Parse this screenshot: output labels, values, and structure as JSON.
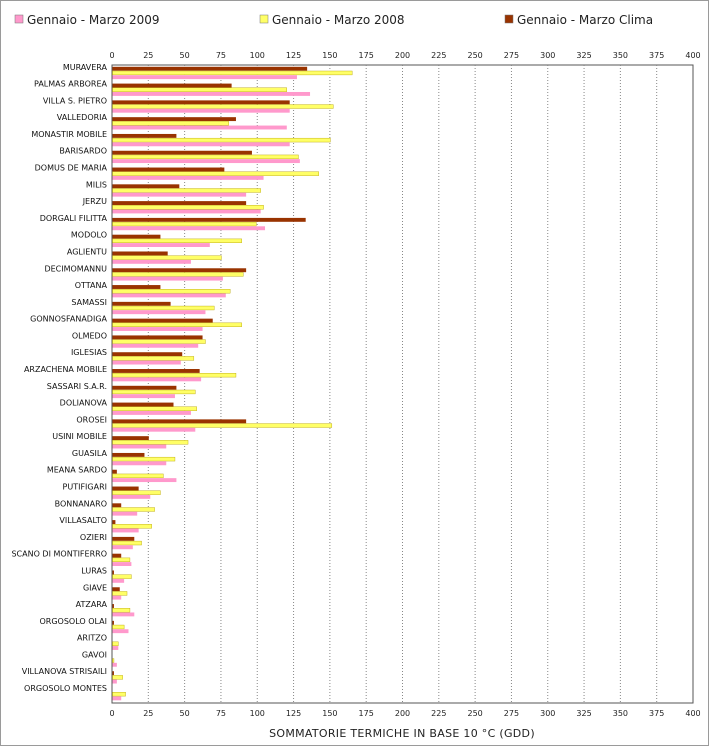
{
  "chart_data": {
    "type": "bar",
    "orientation": "horizontal",
    "xlabel": "SOMMATORIE TERMICHE IN BASE 10 °C (GDD)",
    "xlim": [
      0,
      400
    ],
    "xticks": [
      0,
      25,
      50,
      75,
      100,
      125,
      150,
      175,
      200,
      225,
      250,
      275,
      300,
      325,
      350,
      375,
      400
    ],
    "grid": "vertical dotted",
    "legend_position": "top",
    "categories": [
      "MURAVERA",
      "PALMAS ARBOREA",
      "VILLA S. PIETRO",
      "VALLEDORIA",
      "MONASTIR MOBILE",
      "BARISARDO",
      "DOMUS DE MARIA",
      "MILIS",
      "JERZU",
      "DORGALI FILITTA",
      "MODOLO",
      "AGLIENTU",
      "DECIMOMANNU",
      "OTTANA",
      "SAMASSI",
      "GONNOSFANADIGA",
      "OLMEDO",
      "IGLESIAS",
      "ARZACHENA MOBILE",
      "SASSARI S.A.R.",
      "DOLIANOVA",
      "OROSEI",
      "USINI MOBILE",
      "GUASILA",
      "MEANA SARDO",
      "PUTIFIGARI",
      "BONNANARO",
      "VILLASALTO",
      "OZIERI",
      "SCANO DI MONTIFERRO",
      "LURAS",
      "GIAVE",
      "ATZARA",
      "ORGOSOLO OLAI",
      "ARITZO",
      "GAVOI",
      "VILLANOVA STRISAILI",
      "ORGOSOLO MONTES"
    ],
    "series": [
      {
        "name": "Gennaio - Marzo Clima",
        "color": "#993300",
        "values": [
          134,
          82,
          122,
          85,
          44,
          96,
          77,
          46,
          92,
          133,
          33,
          38,
          92,
          33,
          40,
          69,
          62,
          48,
          60,
          44,
          42,
          92,
          25,
          22,
          3,
          18,
          6,
          2,
          15,
          6,
          1,
          5,
          1,
          1,
          0,
          0,
          1,
          0
        ]
      },
      {
        "name": "Gennaio - Marzo 2008",
        "color": "#ffff66",
        "values": [
          165,
          120,
          152,
          80,
          150,
          128,
          142,
          102,
          104,
          99,
          89,
          75,
          90,
          81,
          70,
          89,
          64,
          56,
          85,
          57,
          58,
          151,
          52,
          43,
          35,
          33,
          29,
          27,
          20,
          12,
          13,
          10,
          12,
          8,
          4,
          1,
          7,
          9
        ]
      },
      {
        "name": "Gennaio - Marzo 2009",
        "color": "#ff99cc",
        "values": [
          127,
          136,
          122,
          120,
          122,
          129,
          104,
          92,
          102,
          105,
          67,
          54,
          76,
          78,
          64,
          62,
          59,
          47,
          61,
          43,
          54,
          57,
          37,
          37,
          44,
          26,
          17,
          18,
          14,
          13,
          8,
          6,
          15,
          11,
          4,
          3,
          3,
          6
        ]
      }
    ]
  }
}
